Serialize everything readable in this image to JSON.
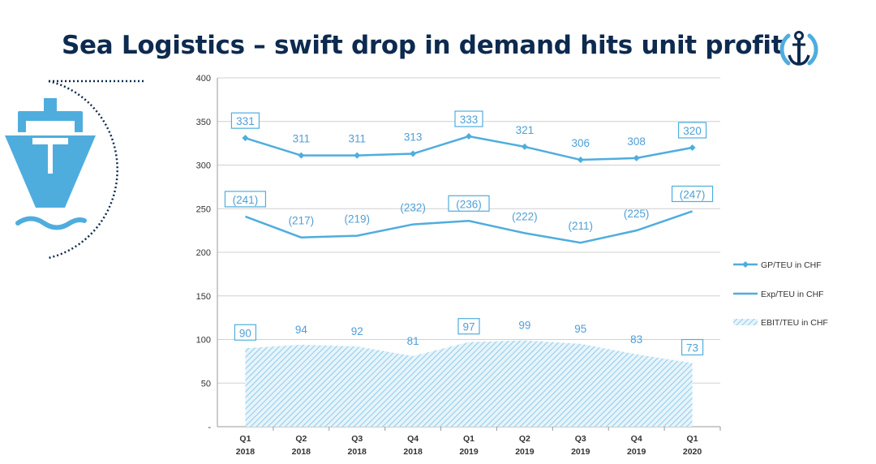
{
  "title": "Sea Logistics – swift drop in demand hits unit profit",
  "icons": {
    "logo": "anchor-logo-icon",
    "ship": "ship-icon"
  },
  "colors": {
    "title": "#0d2a4f",
    "series": "#4fadde",
    "label": "#4f9fd6",
    "grid": "#d0d0d0",
    "area": "#8fcbea"
  },
  "chart_data": {
    "type": "line",
    "categories": [
      [
        "Q1",
        "2018"
      ],
      [
        "Q2",
        "2018"
      ],
      [
        "Q3",
        "2018"
      ],
      [
        "Q4",
        "2018"
      ],
      [
        "Q1",
        "2019"
      ],
      [
        "Q2",
        "2019"
      ],
      [
        "Q3",
        "2019"
      ],
      [
        "Q4",
        "2019"
      ],
      [
        "Q1",
        "2020"
      ]
    ],
    "ylim": [
      0,
      400
    ],
    "yticks": [
      0,
      50,
      100,
      150,
      200,
      250,
      300,
      350,
      400
    ],
    "ytick_labels": [
      "-",
      "50",
      "100",
      "150",
      "200",
      "250",
      "300",
      "350",
      "400"
    ],
    "grid": true,
    "legend_position": "right",
    "series": [
      {
        "name": "GP/TEU in CHF",
        "kind": "line-marker",
        "values": [
          331,
          311,
          311,
          313,
          333,
          321,
          306,
          308,
          320
        ],
        "labels": [
          "331",
          "311",
          "311",
          "313",
          "333",
          "321",
          "306",
          "308",
          "320"
        ],
        "boxed": [
          0,
          4,
          8
        ]
      },
      {
        "name": "Exp/TEU in CHF",
        "kind": "line",
        "values": [
          241,
          217,
          219,
          232,
          236,
          222,
          211,
          225,
          247
        ],
        "labels": [
          "(241)",
          "(217)",
          "(219)",
          "(232)",
          "(236)",
          "(222)",
          "(211)",
          "(225)",
          "(247)"
        ],
        "boxed": [
          0,
          4,
          8
        ]
      },
      {
        "name": "EBIT/TEU in CHF",
        "kind": "hatched-area",
        "values": [
          90,
          94,
          92,
          81,
          97,
          99,
          95,
          83,
          73
        ],
        "labels": [
          "90",
          "94",
          "92",
          "81",
          "97",
          "99",
          "95",
          "83",
          "73"
        ],
        "boxed": [
          0,
          4,
          8
        ]
      }
    ]
  }
}
